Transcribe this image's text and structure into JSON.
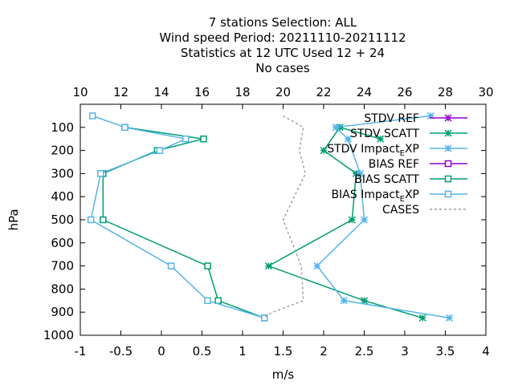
{
  "chart_data": {
    "type": "line",
    "title_lines": [
      "7 stations Selection: ALL",
      "Wind speed  Period: 20211110-20211112",
      "Statistics at 12 UTC  Used  12 + 24",
      "No cases"
    ],
    "xlabel": "m/s",
    "ylabel": "hPa",
    "xlim": [
      -1,
      4
    ],
    "x_ticks": [
      "-1",
      "-0.5",
      "0",
      "0.5",
      "1",
      "1.5",
      "2",
      "2.5",
      "3",
      "3.5",
      "4"
    ],
    "ylim": [
      1000,
      0
    ],
    "y_ticks": [
      "100",
      "200",
      "300",
      "400",
      "500",
      "600",
      "700",
      "800",
      "900",
      "1000"
    ],
    "x2lim": [
      10,
      30
    ],
    "x2_ticks": [
      "10",
      "12",
      "14",
      "16",
      "18",
      "20",
      "22",
      "24",
      "26",
      "28",
      "30"
    ],
    "colors": {
      "ref": "#9400d3",
      "scatt": "#009e73",
      "impact": "#56b4e9",
      "cases": "#a0a0a0"
    },
    "series": [
      {
        "name": "STDV REF",
        "axis": "x",
        "marker": "star",
        "color": "#9400d3",
        "visible": false,
        "x": [],
        "y": []
      },
      {
        "name": "STDV SCATT",
        "axis": "x",
        "marker": "star",
        "color": "#009e73",
        "x": [
          2.7,
          2.2,
          2.0,
          2.4,
          2.35,
          1.32,
          2.5,
          3.22
        ],
        "y": [
          150,
          100,
          200,
          300,
          500,
          700,
          850,
          925
        ]
      },
      {
        "name": "STDV Impact_EXP",
        "axis": "x",
        "marker": "star",
        "color": "#56b4e9",
        "x": [
          3.32,
          2.15,
          2.3,
          2.45,
          2.5,
          1.92,
          2.25,
          3.55
        ],
        "y": [
          50,
          100,
          150,
          300,
          500,
          700,
          850,
          925
        ]
      },
      {
        "name": "BIAS REF",
        "axis": "x",
        "marker": "square",
        "color": "#9400d3",
        "visible": false,
        "x": [],
        "y": []
      },
      {
        "name": "BIAS SCATT",
        "axis": "x",
        "marker": "square",
        "color": "#009e73",
        "x": [
          -0.45,
          0.52,
          -0.05,
          -0.72,
          -0.72,
          0.57,
          0.7,
          1.27
        ],
        "y": [
          100,
          150,
          200,
          300,
          500,
          700,
          850,
          925
        ]
      },
      {
        "name": "BIAS Impact_EXP",
        "axis": "x",
        "marker": "square",
        "color": "#56b4e9",
        "x": [
          -0.85,
          -0.45,
          0.3,
          -0.02,
          -0.75,
          -0.87,
          0.12,
          0.57,
          1.27
        ],
        "y": [
          50,
          100,
          150,
          200,
          300,
          500,
          700,
          850,
          925
        ]
      },
      {
        "name": "CASES",
        "axis": "x2",
        "marker": "none",
        "color": "#a0a0a0",
        "dashed": true,
        "x": [
          20,
          21,
          20.8,
          21.1,
          20,
          20.9,
          21,
          19.5,
          19
        ],
        "y": [
          50,
          100,
          200,
          300,
          500,
          700,
          850,
          900,
          925
        ]
      }
    ],
    "legend": {
      "placement": "top-right"
    },
    "grid": false
  }
}
